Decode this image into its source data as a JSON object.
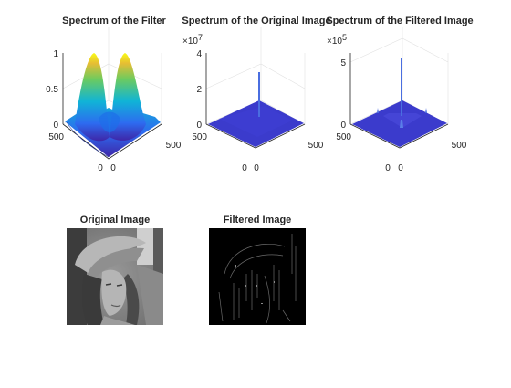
{
  "window": {
    "background": "#ffffff"
  },
  "colors": {
    "surface_blue": "#3b3bcc",
    "spike_blue": "#4a6ee0",
    "axis": "#262626",
    "grid": "#e1e1e1"
  },
  "chart_data": [
    {
      "type": "surface",
      "title": "Spectrum of the Filter",
      "x_ticks": [
        "0",
        "500"
      ],
      "y_ticks": [
        "0",
        "500"
      ],
      "z_ticks": [
        "0",
        "0.5",
        "1"
      ],
      "zlim": [
        0,
        1
      ],
      "colormap": "parula",
      "description_peaks": [
        {
          "label": "peak-left",
          "z": 1.0
        },
        {
          "label": "peak-right",
          "z": 1.0
        },
        {
          "label": "saddle-center",
          "z": 0.25
        }
      ]
    },
    {
      "type": "surface",
      "title": "Spectrum of the Original Image",
      "x_ticks": [
        "0",
        "500"
      ],
      "y_ticks": [
        "0",
        "500"
      ],
      "z_ticks": [
        "0",
        "2",
        "4"
      ],
      "z_exponent": "7",
      "zlim": [
        0,
        4
      ],
      "spike_height": 2.8
    },
    {
      "type": "surface",
      "title": "Spectrum of the Filtered Image",
      "x_ticks": [
        "0",
        "500"
      ],
      "y_ticks": [
        "0",
        "500"
      ],
      "z_ticks": [
        "0",
        "5"
      ],
      "z_exponent": "5",
      "zlim": [
        0,
        6
      ],
      "spike_height": 6.0
    }
  ],
  "images": [
    {
      "title": "Original Image"
    },
    {
      "title": "Filtered Image"
    }
  ]
}
